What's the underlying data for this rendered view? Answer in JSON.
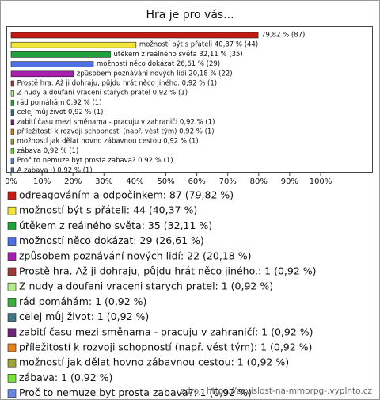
{
  "chart_data": {
    "type": "bar",
    "orientation": "horizontal",
    "title": "Hra je pro vás...",
    "categories": [
      "odreagováním a odpočinkem: 87 (79,82 %)",
      "možností být s přáteli: 44 (40,37 %)",
      "útěkem z reálného světa: 35 (32,11 %)",
      "možností něco dokázat: 29 (26,61 %)",
      "způsobem poznávání nových lidí: 22 (20,18 %)",
      "Prostě hra. Až ji dohraju, půjdu hrát něco jiného.: 1 (0,92 %)",
      "Z nudy a doufani vraceni starych pratel: 1 (0,92 %)",
      "rád pomáhám: 1 (0,92 %)",
      "celej můj život: 1 (0,92 %)",
      "zabití času mezi směnama - pracuju v zahraničí: 1 (0,92 %)",
      "příležitostí k rozvoji schopností (např. vést tým): 1 (0,92 %)",
      "možností jak dělat hovno zábavnou cestou: 1 (0,92 %)",
      "zábava: 1 (0,92 %)",
      "Proč to nemuze byt prosta zabava?: 1 (0,92 %)",
      "A zabava :): 1 (0,92 %)"
    ],
    "values": [
      79.82,
      40.37,
      32.11,
      26.61,
      20.18,
      0.92,
      0.92,
      0.92,
      0.92,
      0.92,
      0.92,
      0.92,
      0.92,
      0.92,
      0.92
    ],
    "value_labels": [
      "79,82 % (87)",
      "možností být s přáteli 40,37 % (44)",
      "útěkem z reálného světa 32,11 % (35)",
      "možností něco dokázat 26,61 % (29)",
      "způsobem poznávání nových lidí 20,18 % (22)",
      "Prostě hra. Až ji dohraju, půjdu hrát něco jiného. 0,92 % (1)",
      "Z nudy a doufani vraceni starych pratel 0,92 % (1)",
      "rád pomáhám 0,92 % (1)",
      "celej můj život 0,92 % (1)",
      "zabití času mezi směnama - pracuju v zahraničí 0,92 % (1)",
      "příležitostí k rozvoji schopností (např. vést tým) 0,92 % (1)",
      "možností jak dělat hovno zábavnou cestou 0,92 % (1)",
      "zábava 0,92 % (1)",
      "Proč to nemuze byt prosta zabava? 0,92 % (1)",
      "A zabava :) 0,92 % (1)"
    ],
    "colors": [
      "#c41a14",
      "#f2e43c",
      "#1fa23c",
      "#4f6fe6",
      "#a81fb0",
      "#9c3a3a",
      "#b4ec8c",
      "#3cae3c",
      "#3f7a86",
      "#6e2478",
      "#e5821e",
      "#a2a63a",
      "#7ce03c",
      "#6a86e2",
      "#5a6aa2"
    ],
    "xlim": [
      0,
      100
    ],
    "xticks": [
      {
        "value": 0,
        "label": "0%"
      },
      {
        "value": 10,
        "label": "10%"
      },
      {
        "value": 20,
        "label": "20%"
      },
      {
        "value": 30,
        "label": "30%"
      },
      {
        "value": 40,
        "label": "40%"
      },
      {
        "value": 50,
        "label": "50%"
      },
      {
        "value": 60,
        "label": "60%"
      },
      {
        "value": 70,
        "label": "70%"
      },
      {
        "value": 80,
        "label": "80%"
      },
      {
        "value": 90,
        "label": "90%"
      },
      {
        "value": 100,
        "label": "100%"
      }
    ],
    "grid": false,
    "source": "zdroj: https://zavislost-na-mmorpg-.vyplnto.cz"
  }
}
